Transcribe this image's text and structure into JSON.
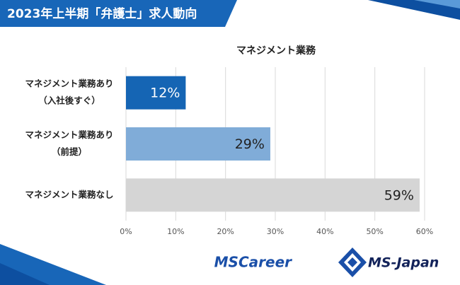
{
  "header": {
    "title": "2023年上半期「弁護士」求人動向"
  },
  "chart_data": {
    "type": "hbar",
    "title": "マネジメント業務",
    "categories": [
      [
        "マネジメント業務あり",
        "（入社後すぐ）"
      ],
      [
        "マネジメント業務あり",
        "（前提）"
      ],
      [
        "マネジメント業務なし"
      ]
    ],
    "values": [
      12,
      29,
      59
    ],
    "value_labels": [
      "12%",
      "29%",
      "59%"
    ],
    "colors": [
      "#1565b4",
      "#80acd8",
      "#d5d5d5"
    ],
    "xlim": [
      0,
      60
    ],
    "xticks": [
      {
        "value": 0,
        "label": "0%"
      },
      {
        "value": 10,
        "label": "10%"
      },
      {
        "value": 20,
        "label": "20%"
      },
      {
        "value": 30,
        "label": "30%"
      },
      {
        "value": 40,
        "label": "40%"
      },
      {
        "value": 50,
        "label": "50%"
      },
      {
        "value": 60,
        "label": "60%"
      }
    ],
    "grid": true
  },
  "footer": {
    "logos": [
      "MSCareer",
      "MS-Japan"
    ]
  }
}
